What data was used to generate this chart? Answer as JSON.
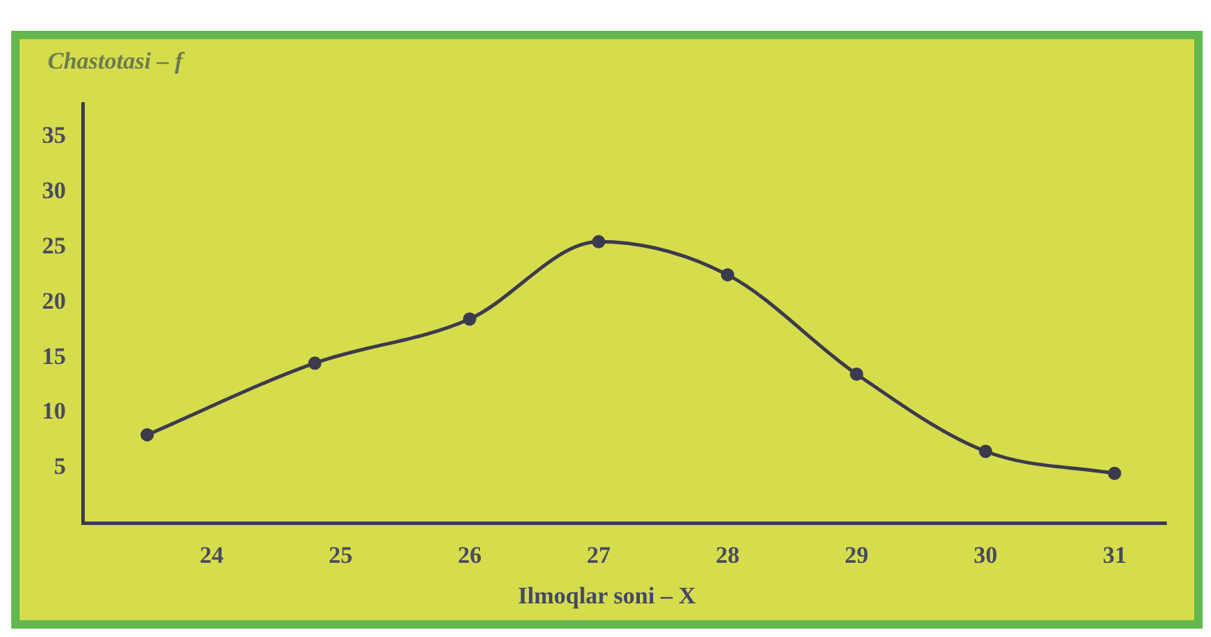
{
  "chart_data": {
    "type": "line",
    "ylabel": "Chastotasi – f",
    "xlabel": "Ilmoqlar soni – X",
    "x": [
      23.5,
      24.8,
      26,
      27,
      28,
      29,
      30,
      31
    ],
    "series": [
      {
        "color": "#3c3a4e",
        "values": [
          8,
          14.5,
          18.5,
          25.5,
          22.5,
          13.5,
          6.5,
          4.5
        ]
      }
    ],
    "xlim": [
      23,
      31.4
    ],
    "xticks": [
      24,
      25,
      26,
      27,
      28,
      29,
      30,
      31
    ],
    "ylim": [
      0,
      38
    ],
    "yticks": [
      5,
      10,
      15,
      20,
      25,
      30,
      35
    ],
    "grid": false,
    "legend": false,
    "marker": "circle",
    "line_style": "solid"
  }
}
